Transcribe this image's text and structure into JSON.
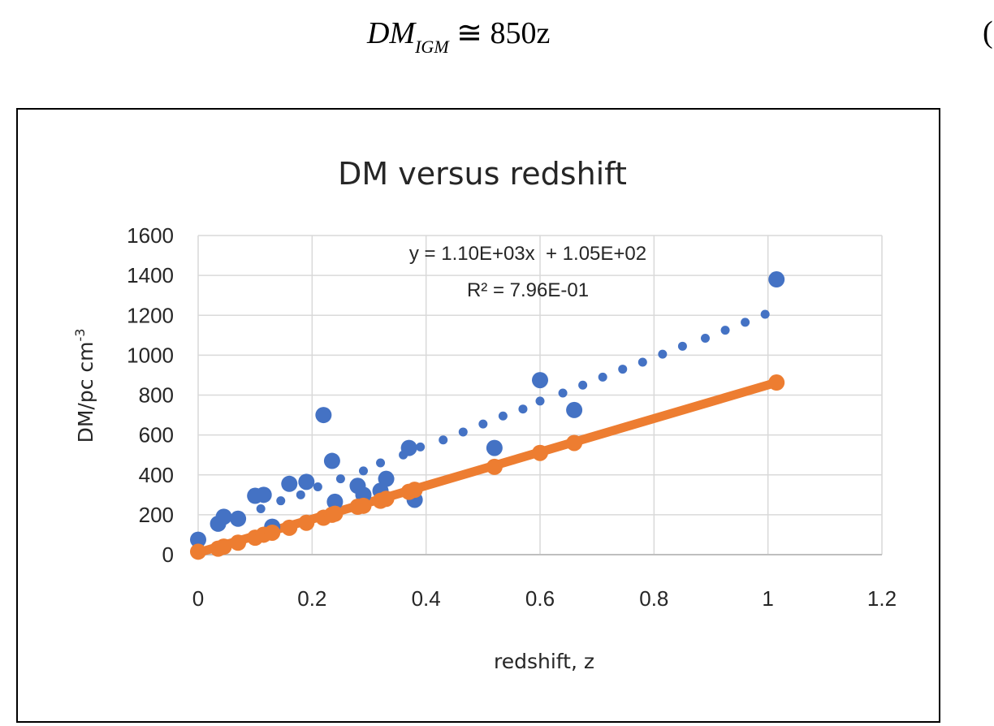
{
  "equation": {
    "lhs": "DM",
    "subscript": "IGM",
    "rhs": "≅ 850z",
    "number": "("
  },
  "chart_data": {
    "type": "scatter",
    "title": "DM versus redshift",
    "xlabel": "redshift, z",
    "ylabel": "DM/pc cm",
    "ylabel_sup": "-3",
    "xlim": [
      0,
      1.2
    ],
    "ylim": [
      0,
      1600
    ],
    "x_ticks": [
      "0",
      "0.2",
      "0.4",
      "0.6",
      "0.8",
      "1",
      "1.2"
    ],
    "y_ticks": [
      "0",
      "200",
      "400",
      "600",
      "800",
      "1000",
      "1200",
      "1400",
      "1600"
    ],
    "grid": true,
    "legend": "none",
    "trendline_equation": "y = 1.10E+03x  + 1.05E+02",
    "r_squared": "R² = 7.96E-01",
    "colors": {
      "observed": "#4472C4",
      "model": "#ED7D31",
      "grid": "#D9D9D9",
      "axis": "#BFBFBF"
    },
    "observed_large": [
      [
        0.0,
        75
      ],
      [
        0.035,
        155
      ],
      [
        0.045,
        190
      ],
      [
        0.07,
        180
      ],
      [
        0.1,
        295
      ],
      [
        0.115,
        300
      ],
      [
        0.13,
        140
      ],
      [
        0.16,
        355
      ],
      [
        0.19,
        365
      ],
      [
        0.22,
        700
      ],
      [
        0.235,
        470
      ],
      [
        0.24,
        265
      ],
      [
        0.28,
        345
      ],
      [
        0.29,
        300
      ],
      [
        0.32,
        320
      ],
      [
        0.33,
        380
      ],
      [
        0.37,
        535
      ],
      [
        0.38,
        275
      ],
      [
        0.52,
        535
      ],
      [
        0.6,
        875
      ],
      [
        0.66,
        725
      ],
      [
        1.015,
        1380
      ]
    ],
    "observed_small": [
      [
        0.11,
        230
      ],
      [
        0.145,
        270
      ],
      [
        0.18,
        300
      ],
      [
        0.21,
        340
      ],
      [
        0.25,
        380
      ],
      [
        0.29,
        420
      ],
      [
        0.32,
        460
      ],
      [
        0.36,
        500
      ],
      [
        0.39,
        540
      ],
      [
        0.43,
        575
      ],
      [
        0.465,
        615
      ],
      [
        0.5,
        655
      ],
      [
        0.535,
        695
      ],
      [
        0.57,
        730
      ],
      [
        0.6,
        770
      ],
      [
        0.64,
        810
      ],
      [
        0.675,
        850
      ],
      [
        0.71,
        890
      ],
      [
        0.745,
        930
      ],
      [
        0.78,
        965
      ],
      [
        0.815,
        1005
      ],
      [
        0.85,
        1045
      ],
      [
        0.89,
        1085
      ],
      [
        0.925,
        1125
      ],
      [
        0.96,
        1165
      ],
      [
        0.995,
        1205
      ]
    ],
    "model_points": [
      [
        0.0,
        15
      ],
      [
        0.035,
        30
      ],
      [
        0.045,
        40
      ],
      [
        0.07,
        60
      ],
      [
        0.1,
        85
      ],
      [
        0.115,
        100
      ],
      [
        0.13,
        110
      ],
      [
        0.16,
        135
      ],
      [
        0.19,
        160
      ],
      [
        0.22,
        185
      ],
      [
        0.235,
        200
      ],
      [
        0.24,
        205
      ],
      [
        0.28,
        240
      ],
      [
        0.29,
        245
      ],
      [
        0.32,
        270
      ],
      [
        0.33,
        280
      ],
      [
        0.37,
        315
      ],
      [
        0.38,
        325
      ],
      [
        0.52,
        440
      ],
      [
        0.6,
        510
      ],
      [
        0.66,
        560
      ],
      [
        1.015,
        863
      ]
    ],
    "model_line": [
      [
        0.0,
        10
      ],
      [
        1.015,
        863
      ]
    ]
  }
}
